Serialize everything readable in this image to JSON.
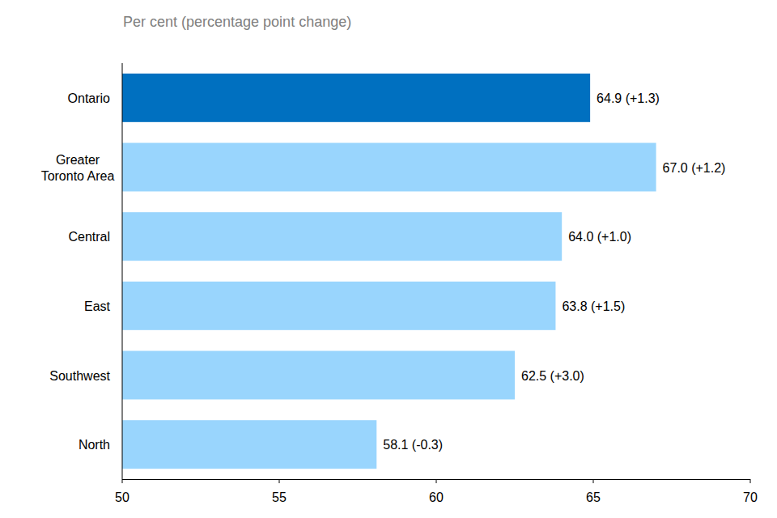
{
  "chart_data": {
    "type": "bar",
    "orientation": "horizontal",
    "title": "Per cent (percentage point change)",
    "categories": [
      "Ontario",
      "Greater Toronto Area",
      "Central",
      "East",
      "Southwest",
      "North"
    ],
    "values": [
      64.9,
      67.0,
      64.0,
      63.8,
      62.5,
      58.1
    ],
    "value_labels": [
      "64.9 (+1.3)",
      "67.0 (+1.2)",
      "64.0 (+1.0)",
      "63.8 (+1.5)",
      "62.5 (+3.0)",
      "58.1 (-0.3)"
    ],
    "colors": [
      "#0070c0",
      "#99d5fd",
      "#99d5fd",
      "#99d5fd",
      "#99d5fd",
      "#99d5fd"
    ],
    "data_labels": true,
    "grid": false,
    "xlim": [
      50,
      70
    ],
    "xticks": [
      50,
      55,
      60,
      65,
      70
    ]
  }
}
